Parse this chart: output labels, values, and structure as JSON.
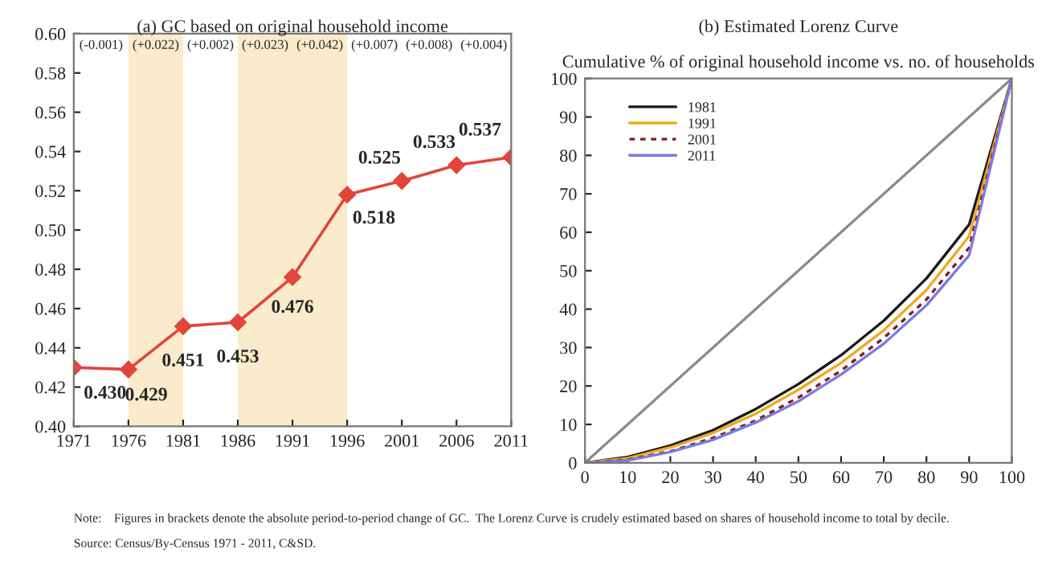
{
  "chart_data": [
    {
      "type": "line",
      "title": "(a) GC based on original household income",
      "x": [
        1971,
        1976,
        1981,
        1986,
        1991,
        1996,
        2001,
        2006,
        2011
      ],
      "series": [
        {
          "color": "#e0463a",
          "values": [
            0.43,
            0.429,
            0.451,
            0.453,
            0.476,
            0.518,
            0.525,
            0.533,
            0.537
          ]
        }
      ],
      "marker": "diamond",
      "line_style": "solid",
      "value_labels": [
        "0.430",
        "0.429",
        "0.451",
        "0.453",
        "0.476",
        "0.518",
        "0.525",
        "0.533",
        "0.537"
      ],
      "xlim": [
        1971,
        2011
      ],
      "xticks": [
        1971,
        1976,
        1981,
        1986,
        1991,
        1996,
        2001,
        2006,
        2011
      ],
      "ylim": [
        0.4,
        0.6
      ],
      "yticks": [
        {
          "value": 0.4,
          "label": "0.40"
        },
        {
          "value": 0.42,
          "label": "0.42"
        },
        {
          "value": 0.44,
          "label": "0.44"
        },
        {
          "value": 0.46,
          "label": "0.46"
        },
        {
          "value": 0.48,
          "label": "0.48"
        },
        {
          "value": 0.5,
          "label": "0.50"
        },
        {
          "value": 0.52,
          "label": "0.52"
        },
        {
          "value": 0.54,
          "label": "0.54"
        },
        {
          "value": 0.56,
          "label": "0.56"
        },
        {
          "value": 0.58,
          "label": "0.58"
        },
        {
          "value": 0.6,
          "label": "0.60"
        }
      ],
      "bands": [
        {
          "axis": "x",
          "from": 1976,
          "to": 1981,
          "color": "#f9ebcb"
        },
        {
          "axis": "x",
          "from": 1986,
          "to": 1996,
          "color": "#f9ebcb"
        }
      ],
      "annotations": [
        "(-0.001)",
        "(+0.022)",
        "(+0.002)",
        "(+0.023)",
        "(+0.042)",
        "(+0.007)",
        "(+0.008)",
        "(+0.004)",
        "Note:    Figures in brackets denote the absolute period-to-period change of GC.  The Lorenz Curve is crudely estimated based on shares of household income to total by decile.",
        "Source: Census/By-Census 1971 - 2011, C&SD."
      ],
      "grid": false,
      "legend": false
    },
    {
      "type": "line",
      "title": "(b) Estimated Lorenz Curve",
      "subtitle": "Cumulative % of original household income vs. no. of households",
      "x": [
        0,
        10,
        20,
        30,
        40,
        50,
        60,
        70,
        80,
        90,
        100
      ],
      "series": [
        {
          "color": "#8c8c8c",
          "x": [
            0,
            100
          ],
          "values": [
            0,
            100
          ]
        },
        {
          "name": "1981",
          "color": "#1a1a1a",
          "values": [
            0,
            1.5,
            4.5,
            8.5,
            14,
            20.5,
            28,
            37,
            48,
            62,
            100
          ]
        },
        {
          "name": "1991",
          "color": "#f0a81e",
          "values": [
            0,
            1.2,
            4,
            7.8,
            12.8,
            19,
            26,
            34.5,
            45,
            59,
            100
          ]
        },
        {
          "name": "2001",
          "color": "#7a1f1f",
          "line_style": "dashed",
          "values": [
            0,
            0.8,
            3,
            6.5,
            11,
            17,
            24,
            32.5,
            42.5,
            56,
            100
          ]
        },
        {
          "name": "2011",
          "color": "#7b78e8",
          "values": [
            0,
            0.6,
            2.8,
            6,
            10.5,
            16,
            23,
            31,
            41,
            54,
            100
          ]
        }
      ],
      "marker": "none",
      "line_style": "solid",
      "xlim": [
        0,
        100
      ],
      "xticks": [
        0,
        10,
        20,
        30,
        40,
        50,
        60,
        70,
        80,
        90,
        100
      ],
      "ylim": [
        0,
        100
      ],
      "yticks": [
        0,
        10,
        20,
        30,
        40,
        50,
        60,
        70,
        80,
        90,
        100
      ],
      "grid": false,
      "legend": "top left"
    }
  ]
}
